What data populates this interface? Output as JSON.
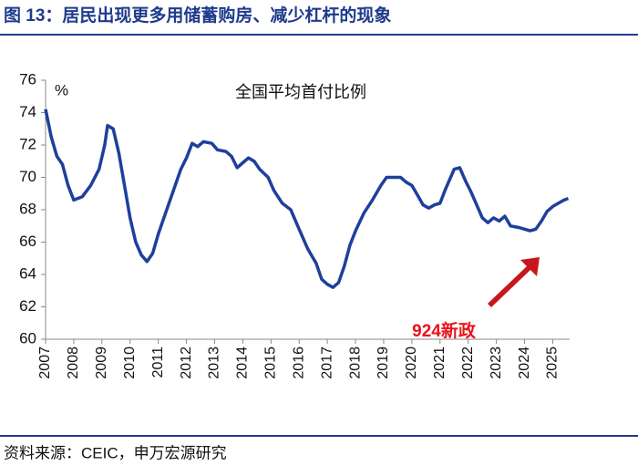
{
  "header": {
    "title": "图 13：居民出现更多用储蓄购房、减少杠杆的现象"
  },
  "source": "资料来源：CEIC，申万宏源研究",
  "chart_data": {
    "type": "line",
    "title": "全国平均首付比例",
    "y_unit": "%",
    "x": [
      2007.0,
      2007.2,
      2007.4,
      2007.6,
      2007.8,
      2008.0,
      2008.3,
      2008.6,
      2008.9,
      2009.1,
      2009.2,
      2009.4,
      2009.6,
      2009.8,
      2010.0,
      2010.2,
      2010.4,
      2010.6,
      2010.8,
      2011.0,
      2011.2,
      2011.5,
      2011.8,
      2012.0,
      2012.2,
      2012.4,
      2012.6,
      2012.9,
      2013.1,
      2013.4,
      2013.6,
      2013.8,
      2014.0,
      2014.2,
      2014.4,
      2014.6,
      2014.9,
      2015.1,
      2015.4,
      2015.7,
      2016.0,
      2016.3,
      2016.6,
      2016.8,
      2017.0,
      2017.2,
      2017.4,
      2017.6,
      2017.8,
      2018.0,
      2018.3,
      2018.6,
      2018.9,
      2019.1,
      2019.4,
      2019.6,
      2019.8,
      2020.0,
      2020.2,
      2020.4,
      2020.6,
      2020.8,
      2021.0,
      2021.2,
      2021.5,
      2021.7,
      2021.9,
      2022.1,
      2022.3,
      2022.5,
      2022.7,
      2022.9,
      2023.1,
      2023.3,
      2023.5,
      2023.8,
      2024.0,
      2024.2,
      2024.4,
      2024.6,
      2024.8,
      2025.0,
      2025.2,
      2025.4,
      2025.55
    ],
    "values": [
      74.2,
      72.5,
      71.3,
      70.8,
      69.5,
      68.6,
      68.8,
      69.5,
      70.5,
      72.0,
      73.2,
      73.0,
      71.5,
      69.5,
      67.5,
      66.0,
      65.2,
      64.8,
      65.3,
      66.5,
      67.5,
      69.0,
      70.5,
      71.2,
      72.1,
      71.9,
      72.2,
      72.1,
      71.7,
      71.6,
      71.3,
      70.6,
      70.9,
      71.2,
      71.0,
      70.5,
      70.0,
      69.2,
      68.4,
      68.0,
      66.8,
      65.6,
      64.7,
      63.7,
      63.4,
      63.2,
      63.5,
      64.5,
      65.8,
      66.7,
      67.8,
      68.6,
      69.5,
      70.0,
      70.0,
      70.0,
      69.7,
      69.5,
      68.9,
      68.3,
      68.1,
      68.3,
      68.4,
      69.3,
      70.5,
      70.6,
      69.8,
      69.1,
      68.3,
      67.5,
      67.2,
      67.5,
      67.3,
      67.6,
      67.0,
      66.9,
      66.8,
      66.7,
      66.8,
      67.3,
      67.9,
      68.2,
      68.4,
      68.6,
      68.7
    ],
    "color": "#1f3f9c",
    "xlim": [
      2007,
      2025.6
    ],
    "xticks": [
      2007,
      2008,
      2009,
      2010,
      2011,
      2012,
      2013,
      2014,
      2015,
      2016,
      2017,
      2018,
      2019,
      2020,
      2021,
      2022,
      2023,
      2024,
      2025
    ],
    "ylim": [
      60,
      76
    ],
    "yticks": [
      60,
      62,
      64,
      66,
      68,
      70,
      72,
      74,
      76
    ],
    "annotation": "924新政",
    "annotation_color": "#e8141b"
  }
}
